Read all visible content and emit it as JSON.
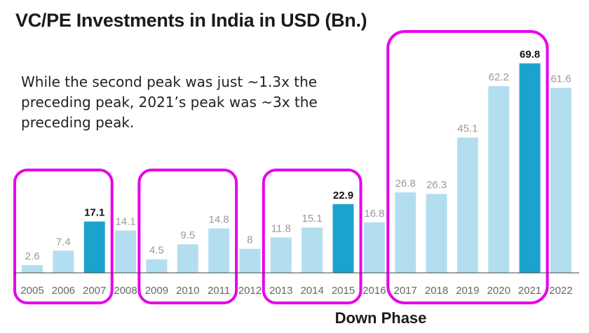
{
  "title": "VC/PE Investments in India in USD (Bn.)",
  "annotation": "While the second peak was just ~1.3x the preceding peak, 2021’s peak was ~3x the preceding peak.",
  "colors": {
    "bar": "#b3def0",
    "highlight": "#1ba3cd",
    "outline": "#e800e8",
    "label": "#999999",
    "axis": "#666666",
    "highlight_label": "#111111"
  },
  "chart_data": {
    "type": "bar",
    "title": "VC/PE Investments in India in USD (Bn.)",
    "categories": [
      "2005",
      "2006",
      "2007",
      "2008",
      "2009",
      "2010",
      "2011",
      "2012",
      "2013",
      "2014",
      "2015",
      "2016",
      "2017",
      "2018",
      "2019",
      "2020",
      "2021",
      "2022"
    ],
    "values": [
      2.6,
      7.4,
      17.1,
      14.1,
      4.5,
      9.5,
      14.8,
      8,
      11.8,
      15.1,
      22.9,
      16.8,
      26.8,
      26.3,
      45.1,
      62.2,
      69.8,
      61.6
    ],
    "data_labels": [
      "2.6",
      "7.4",
      "17.1",
      "14.1",
      "4.5",
      "9.5",
      "14.8",
      "8",
      "11.8",
      "15.1",
      "22.9",
      "16.8",
      "26.8",
      "26.3",
      "45.1",
      "62.2",
      "69.8",
      "61.6"
    ],
    "highlighted": [
      "2007",
      "2015",
      "2021"
    ],
    "xlabel": "Down Phase",
    "ylabel": "",
    "ylim": [
      0,
      75
    ],
    "grid": false,
    "groups": [
      {
        "start": "2005",
        "end": "2007"
      },
      {
        "start": "2009",
        "end": "2011"
      },
      {
        "start": "2013",
        "end": "2015"
      },
      {
        "start": "2017",
        "end": "2021"
      }
    ]
  }
}
